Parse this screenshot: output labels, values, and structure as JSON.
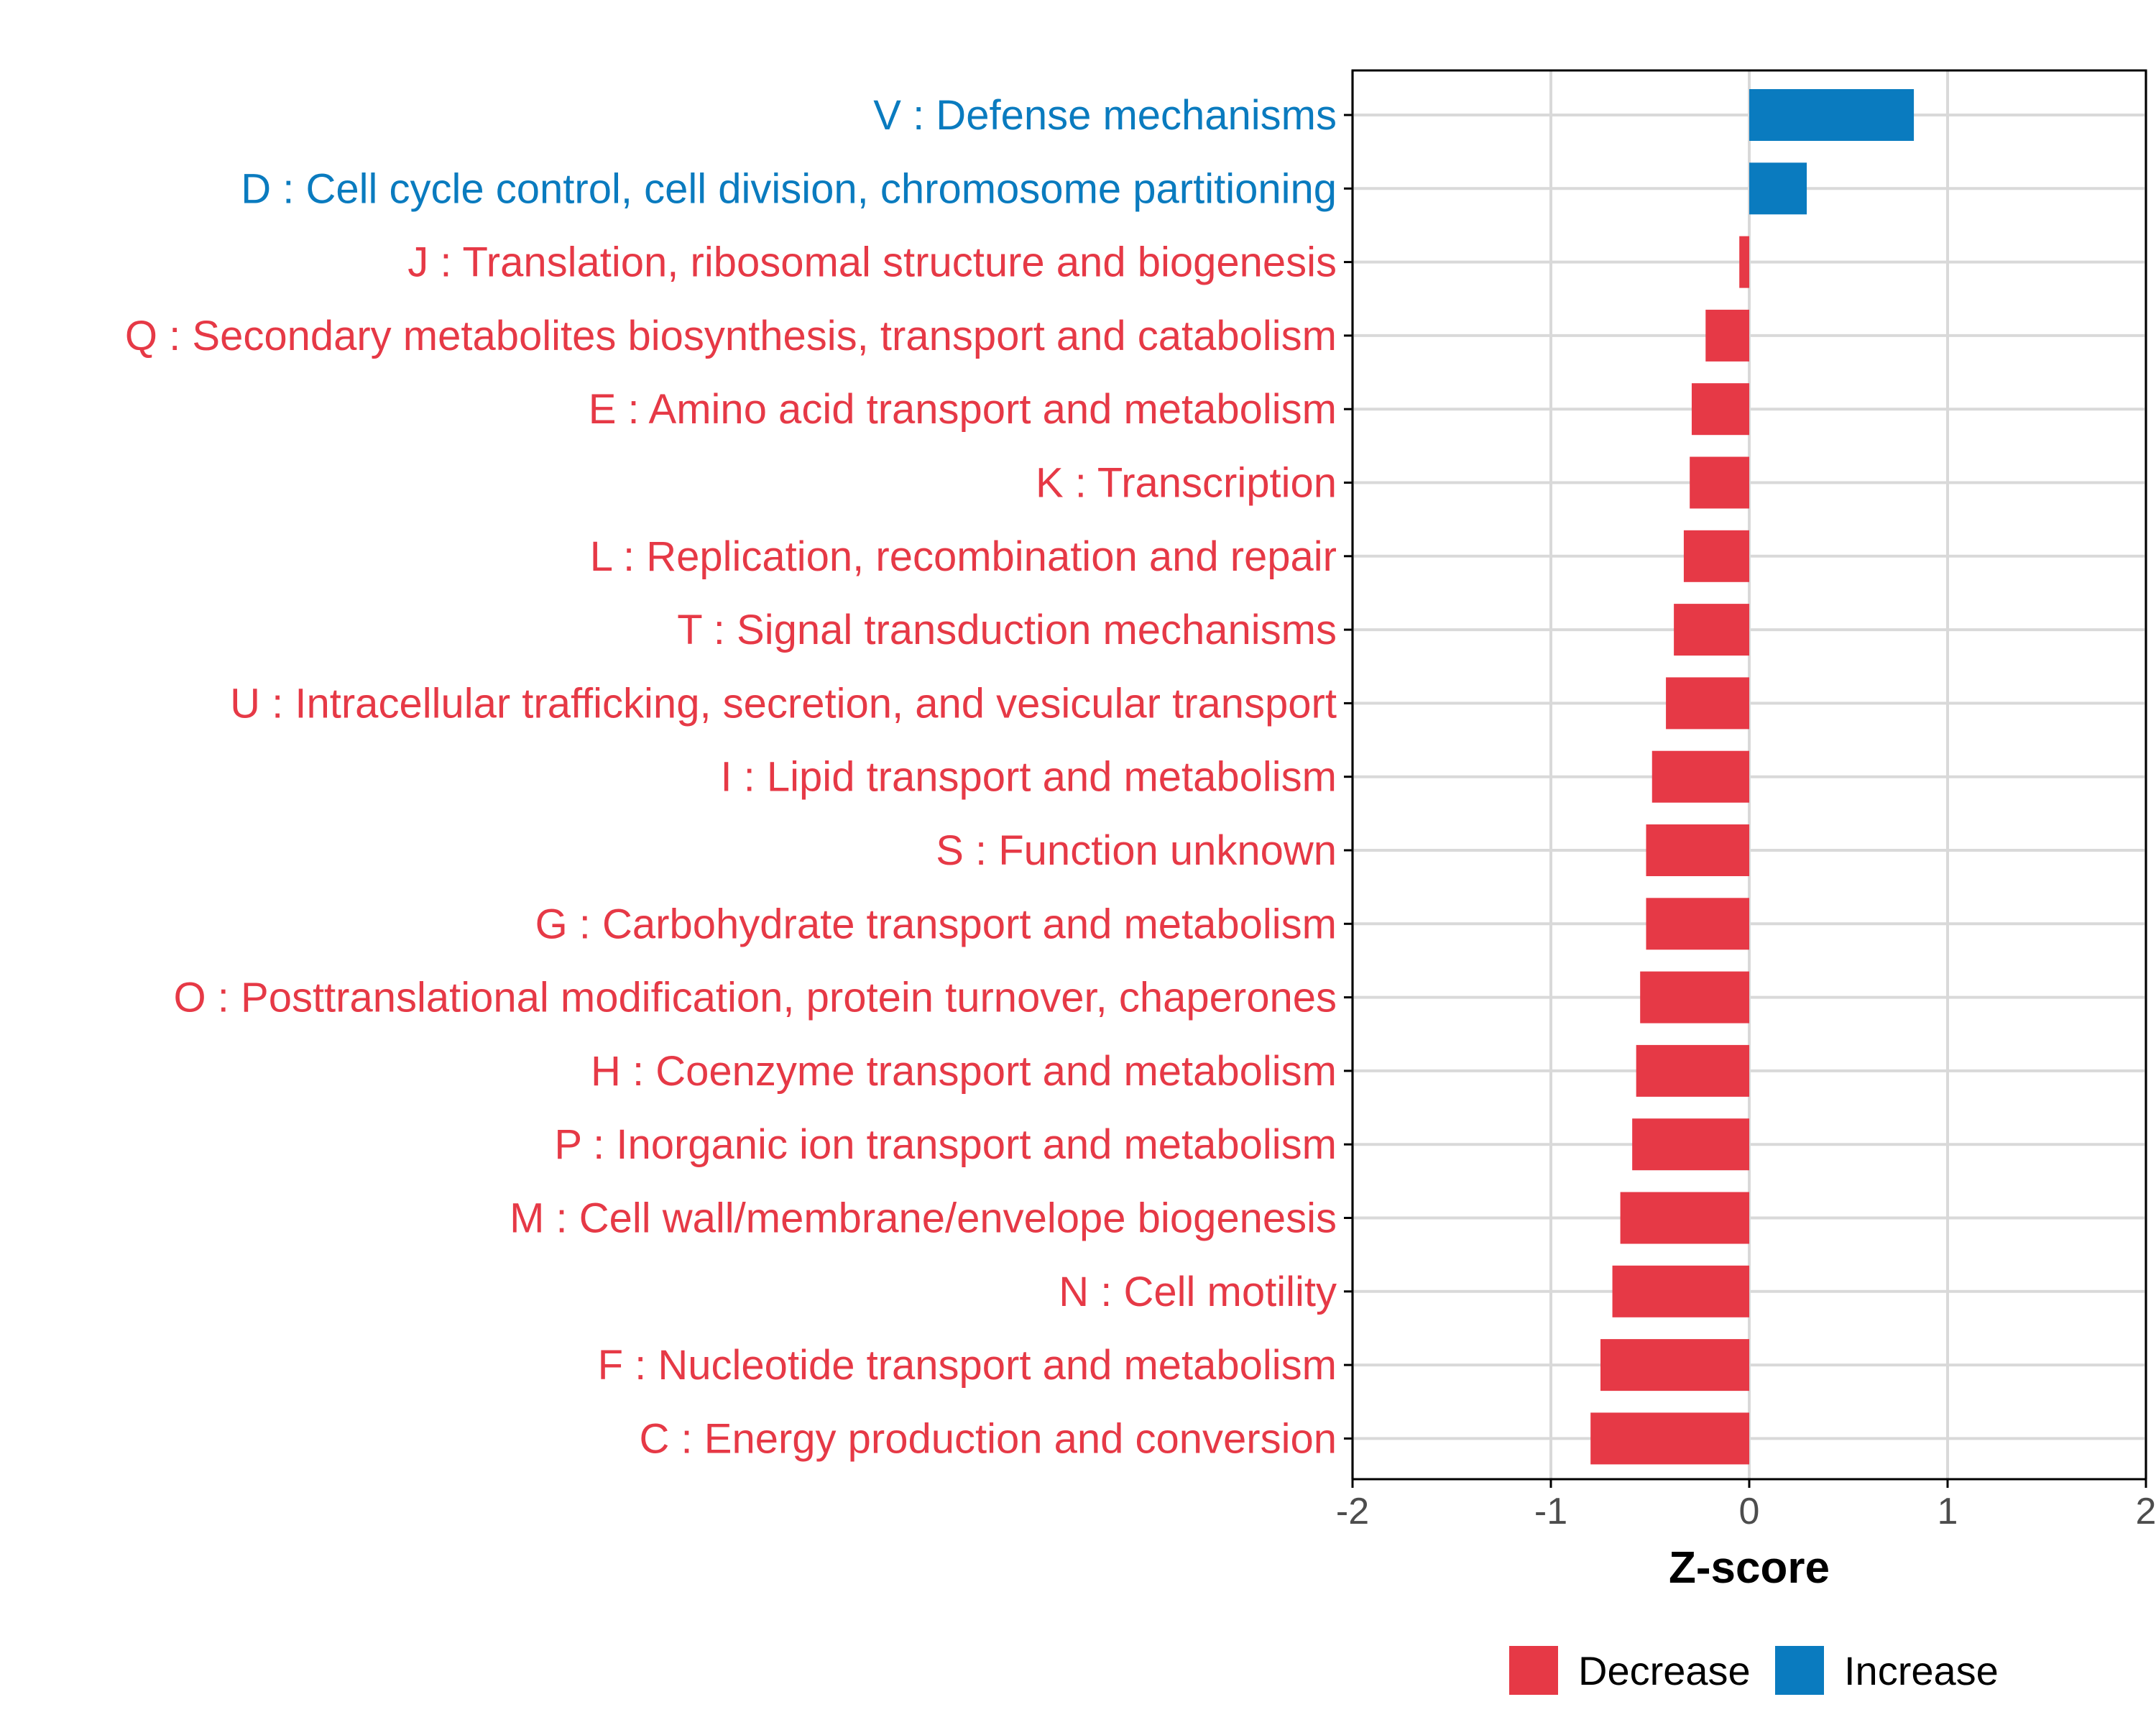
{
  "colors": {
    "decrease": "#E63946",
    "increase": "#0A7BBF",
    "grid": "#D9D9D9",
    "axis": "#000000",
    "tick_text": "#4D4D4D"
  },
  "chart_data": {
    "type": "bar",
    "orientation": "horizontal",
    "title": "",
    "xlabel": "Z-score",
    "ylabel": "",
    "xlim": [
      -2,
      2
    ],
    "x_ticks": [
      "-2",
      "-1",
      "0",
      "1",
      "2"
    ],
    "grid": true,
    "legend_position": "bottom",
    "legend": [
      {
        "key": "decrease",
        "label": "Decrease"
      },
      {
        "key": "increase",
        "label": "Increase"
      }
    ],
    "categories": [
      "V : Defense mechanisms",
      "D : Cell cycle control, cell division, chromosome partitioning",
      "J : Translation, ribosomal structure and biogenesis",
      "Q : Secondary metabolites biosynthesis, transport and catabolism",
      "E : Amino acid transport and metabolism",
      "K : Transcription",
      "L : Replication, recombination and repair",
      "T : Signal transduction mechanisms",
      "U : Intracellular trafficking, secretion, and vesicular transport",
      "I : Lipid transport and metabolism",
      "S : Function unknown",
      "G : Carbohydrate transport and metabolism",
      "O : Posttranslational modification, protein turnover, chaperones",
      "H : Coenzyme transport and metabolism",
      "P : Inorganic ion transport and metabolism",
      "M : Cell wall/membrane/envelope biogenesis",
      "N : Cell motility",
      "F : Nucleotide transport and metabolism",
      "C : Energy production and conversion"
    ],
    "values": [
      0.83,
      0.29,
      -0.05,
      -0.22,
      -0.29,
      -0.3,
      -0.33,
      -0.38,
      -0.42,
      -0.49,
      -0.52,
      -0.52,
      -0.55,
      -0.57,
      -0.59,
      -0.65,
      -0.69,
      -0.75,
      -0.8
    ],
    "groups": [
      "increase",
      "increase",
      "decrease",
      "decrease",
      "decrease",
      "decrease",
      "decrease",
      "decrease",
      "decrease",
      "decrease",
      "decrease",
      "decrease",
      "decrease",
      "decrease",
      "decrease",
      "decrease",
      "decrease",
      "decrease",
      "decrease"
    ]
  }
}
